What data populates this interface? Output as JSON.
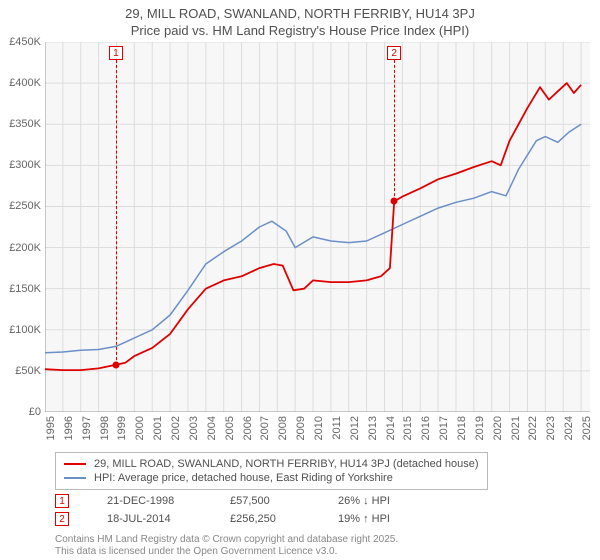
{
  "title_line1": "29, MILL ROAD, SWANLAND, NORTH FERRIBY, HU14 3PJ",
  "title_line2": "Price paid vs. HM Land Registry's House Price Index (HPI)",
  "chart": {
    "type": "line",
    "background_color": "#f7f7f7",
    "grid_color": "#dddddd",
    "xlim": [
      1995,
      2025.5
    ],
    "ylim": [
      0,
      450000
    ],
    "ytick_step": 50000,
    "ytick_prefix": "£",
    "ytick_suffix": "K",
    "yticks": [
      "£0",
      "£50K",
      "£100K",
      "£150K",
      "£200K",
      "£250K",
      "£300K",
      "£350K",
      "£400K",
      "£450K"
    ],
    "xticks": [
      1995,
      1996,
      1997,
      1998,
      1999,
      2000,
      2001,
      2002,
      2003,
      2004,
      2005,
      2006,
      2007,
      2008,
      2009,
      2010,
      2011,
      2012,
      2013,
      2014,
      2015,
      2016,
      2017,
      2018,
      2019,
      2020,
      2021,
      2022,
      2023,
      2024,
      2025
    ],
    "series": [
      {
        "id": "price_paid",
        "label": "29, MILL ROAD, SWANLAND, NORTH FERRIBY, HU14 3PJ (detached house)",
        "color": "#e00000",
        "width": 1.8,
        "data": [
          [
            1995.0,
            52000
          ],
          [
            1996.0,
            51000
          ],
          [
            1997.0,
            51000
          ],
          [
            1998.0,
            53000
          ],
          [
            1998.97,
            57500
          ],
          [
            1999.5,
            60000
          ],
          [
            2000.0,
            68000
          ],
          [
            2001.0,
            78000
          ],
          [
            2002.0,
            95000
          ],
          [
            2003.0,
            125000
          ],
          [
            2004.0,
            150000
          ],
          [
            2005.0,
            160000
          ],
          [
            2006.0,
            165000
          ],
          [
            2007.0,
            175000
          ],
          [
            2007.8,
            180000
          ],
          [
            2008.3,
            178000
          ],
          [
            2008.9,
            148000
          ],
          [
            2009.5,
            150000
          ],
          [
            2010.0,
            160000
          ],
          [
            2011.0,
            158000
          ],
          [
            2012.0,
            158000
          ],
          [
            2013.0,
            160000
          ],
          [
            2013.8,
            165000
          ],
          [
            2014.3,
            175000
          ],
          [
            2014.54,
            256250
          ],
          [
            2015.0,
            262000
          ],
          [
            2016.0,
            272000
          ],
          [
            2017.0,
            283000
          ],
          [
            2018.0,
            290000
          ],
          [
            2019.0,
            298000
          ],
          [
            2020.0,
            305000
          ],
          [
            2020.5,
            300000
          ],
          [
            2021.0,
            330000
          ],
          [
            2022.0,
            370000
          ],
          [
            2022.7,
            395000
          ],
          [
            2023.2,
            380000
          ],
          [
            2023.7,
            390000
          ],
          [
            2024.2,
            400000
          ],
          [
            2024.6,
            388000
          ],
          [
            2025.0,
            398000
          ]
        ]
      },
      {
        "id": "hpi",
        "label": "HPI: Average price, detached house, East Riding of Yorkshire",
        "color": "#6b8fc8",
        "width": 1.5,
        "data": [
          [
            1995.0,
            72000
          ],
          [
            1996.0,
            73000
          ],
          [
            1997.0,
            75000
          ],
          [
            1998.0,
            76000
          ],
          [
            1999.0,
            80000
          ],
          [
            2000.0,
            90000
          ],
          [
            2001.0,
            100000
          ],
          [
            2002.0,
            118000
          ],
          [
            2003.0,
            148000
          ],
          [
            2004.0,
            180000
          ],
          [
            2005.0,
            195000
          ],
          [
            2006.0,
            208000
          ],
          [
            2007.0,
            225000
          ],
          [
            2007.7,
            232000
          ],
          [
            2008.5,
            220000
          ],
          [
            2009.0,
            200000
          ],
          [
            2010.0,
            213000
          ],
          [
            2011.0,
            208000
          ],
          [
            2012.0,
            206000
          ],
          [
            2013.0,
            208000
          ],
          [
            2014.0,
            218000
          ],
          [
            2015.0,
            228000
          ],
          [
            2016.0,
            238000
          ],
          [
            2017.0,
            248000
          ],
          [
            2018.0,
            255000
          ],
          [
            2019.0,
            260000
          ],
          [
            2020.0,
            268000
          ],
          [
            2020.8,
            263000
          ],
          [
            2021.5,
            295000
          ],
          [
            2022.5,
            330000
          ],
          [
            2023.0,
            335000
          ],
          [
            2023.7,
            328000
          ],
          [
            2024.3,
            340000
          ],
          [
            2025.0,
            350000
          ]
        ]
      }
    ],
    "markers": [
      {
        "n": "1",
        "x": 1998.97,
        "y": 57500,
        "date": "21-DEC-1998",
        "price": "£57,500",
        "delta": "26% ↓ HPI"
      },
      {
        "n": "2",
        "x": 2014.54,
        "y": 256250,
        "date": "18-JUL-2014",
        "price": "£256,250",
        "delta": "19% ↑ HPI"
      }
    ]
  },
  "footnote_line1": "Contains HM Land Registry data © Crown copyright and database right 2025.",
  "footnote_line2": "This data is licensed under the Open Government Licence v3.0."
}
